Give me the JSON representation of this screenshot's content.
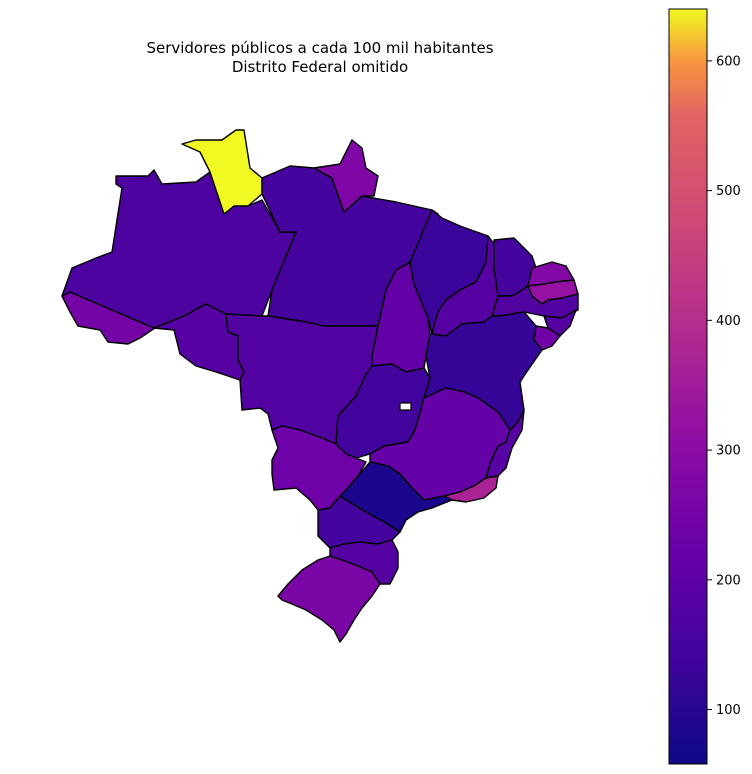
{
  "chart_data": {
    "type": "choropleth",
    "title": "Servidores públicos a cada 100 mil habitantes",
    "subtitle": "Distrito Federal omitido",
    "colormap": "plasma",
    "colorbar": {
      "min": 58,
      "max": 640,
      "ticks": [
        100,
        200,
        300,
        400,
        500,
        600
      ]
    },
    "regions": [
      {
        "name": "AC",
        "value": 250
      },
      {
        "name": "AM",
        "value": 165
      },
      {
        "name": "RR",
        "value": 640
      },
      {
        "name": "PA",
        "value": 150
      },
      {
        "name": "AP",
        "value": 270
      },
      {
        "name": "RO",
        "value": 185
      },
      {
        "name": "MT",
        "value": 175
      },
      {
        "name": "TO",
        "value": 210
      },
      {
        "name": "MA",
        "value": 130
      },
      {
        "name": "PI",
        "value": 185
      },
      {
        "name": "CE",
        "value": 150
      },
      {
        "name": "RN",
        "value": 280
      },
      {
        "name": "PB",
        "value": 320
      },
      {
        "name": "PE",
        "value": 175
      },
      {
        "name": "AL",
        "value": 185
      },
      {
        "name": "SE",
        "value": 240
      },
      {
        "name": "BA",
        "value": 120
      },
      {
        "name": "GO",
        "value": 140
      },
      {
        "name": "MG",
        "value": 215
      },
      {
        "name": "ES",
        "value": 190
      },
      {
        "name": "RJ",
        "value": 370
      },
      {
        "name": "SP",
        "value": 80
      },
      {
        "name": "MS",
        "value": 235
      },
      {
        "name": "PR",
        "value": 150
      },
      {
        "name": "SC",
        "value": 180
      },
      {
        "name": "RS",
        "value": 265
      }
    ]
  }
}
